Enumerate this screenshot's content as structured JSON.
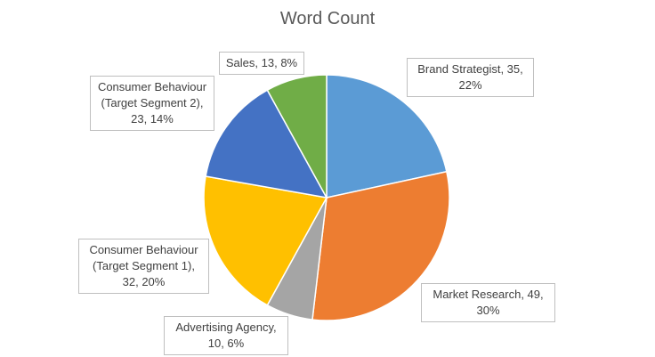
{
  "chart_data": {
    "type": "pie",
    "title": "Word Count",
    "value_labels": [
      "Brand Strategist, 35, 22%",
      "Market Research, 49, 30%",
      "Advertising Agency, 10, 6%",
      "Consumer Behaviour (Target Segment 1), 32, 20%",
      "Consumer Behaviour (Target Segment 2), 23, 14%",
      "Sales, 13, 8%"
    ],
    "values": [
      35,
      49,
      10,
      32,
      23,
      13
    ],
    "colors": [
      "#5b9bd5",
      "#ed7d31",
      "#a5a5a5",
      "#ffc000",
      "#4472c4",
      "#70ad47"
    ]
  }
}
